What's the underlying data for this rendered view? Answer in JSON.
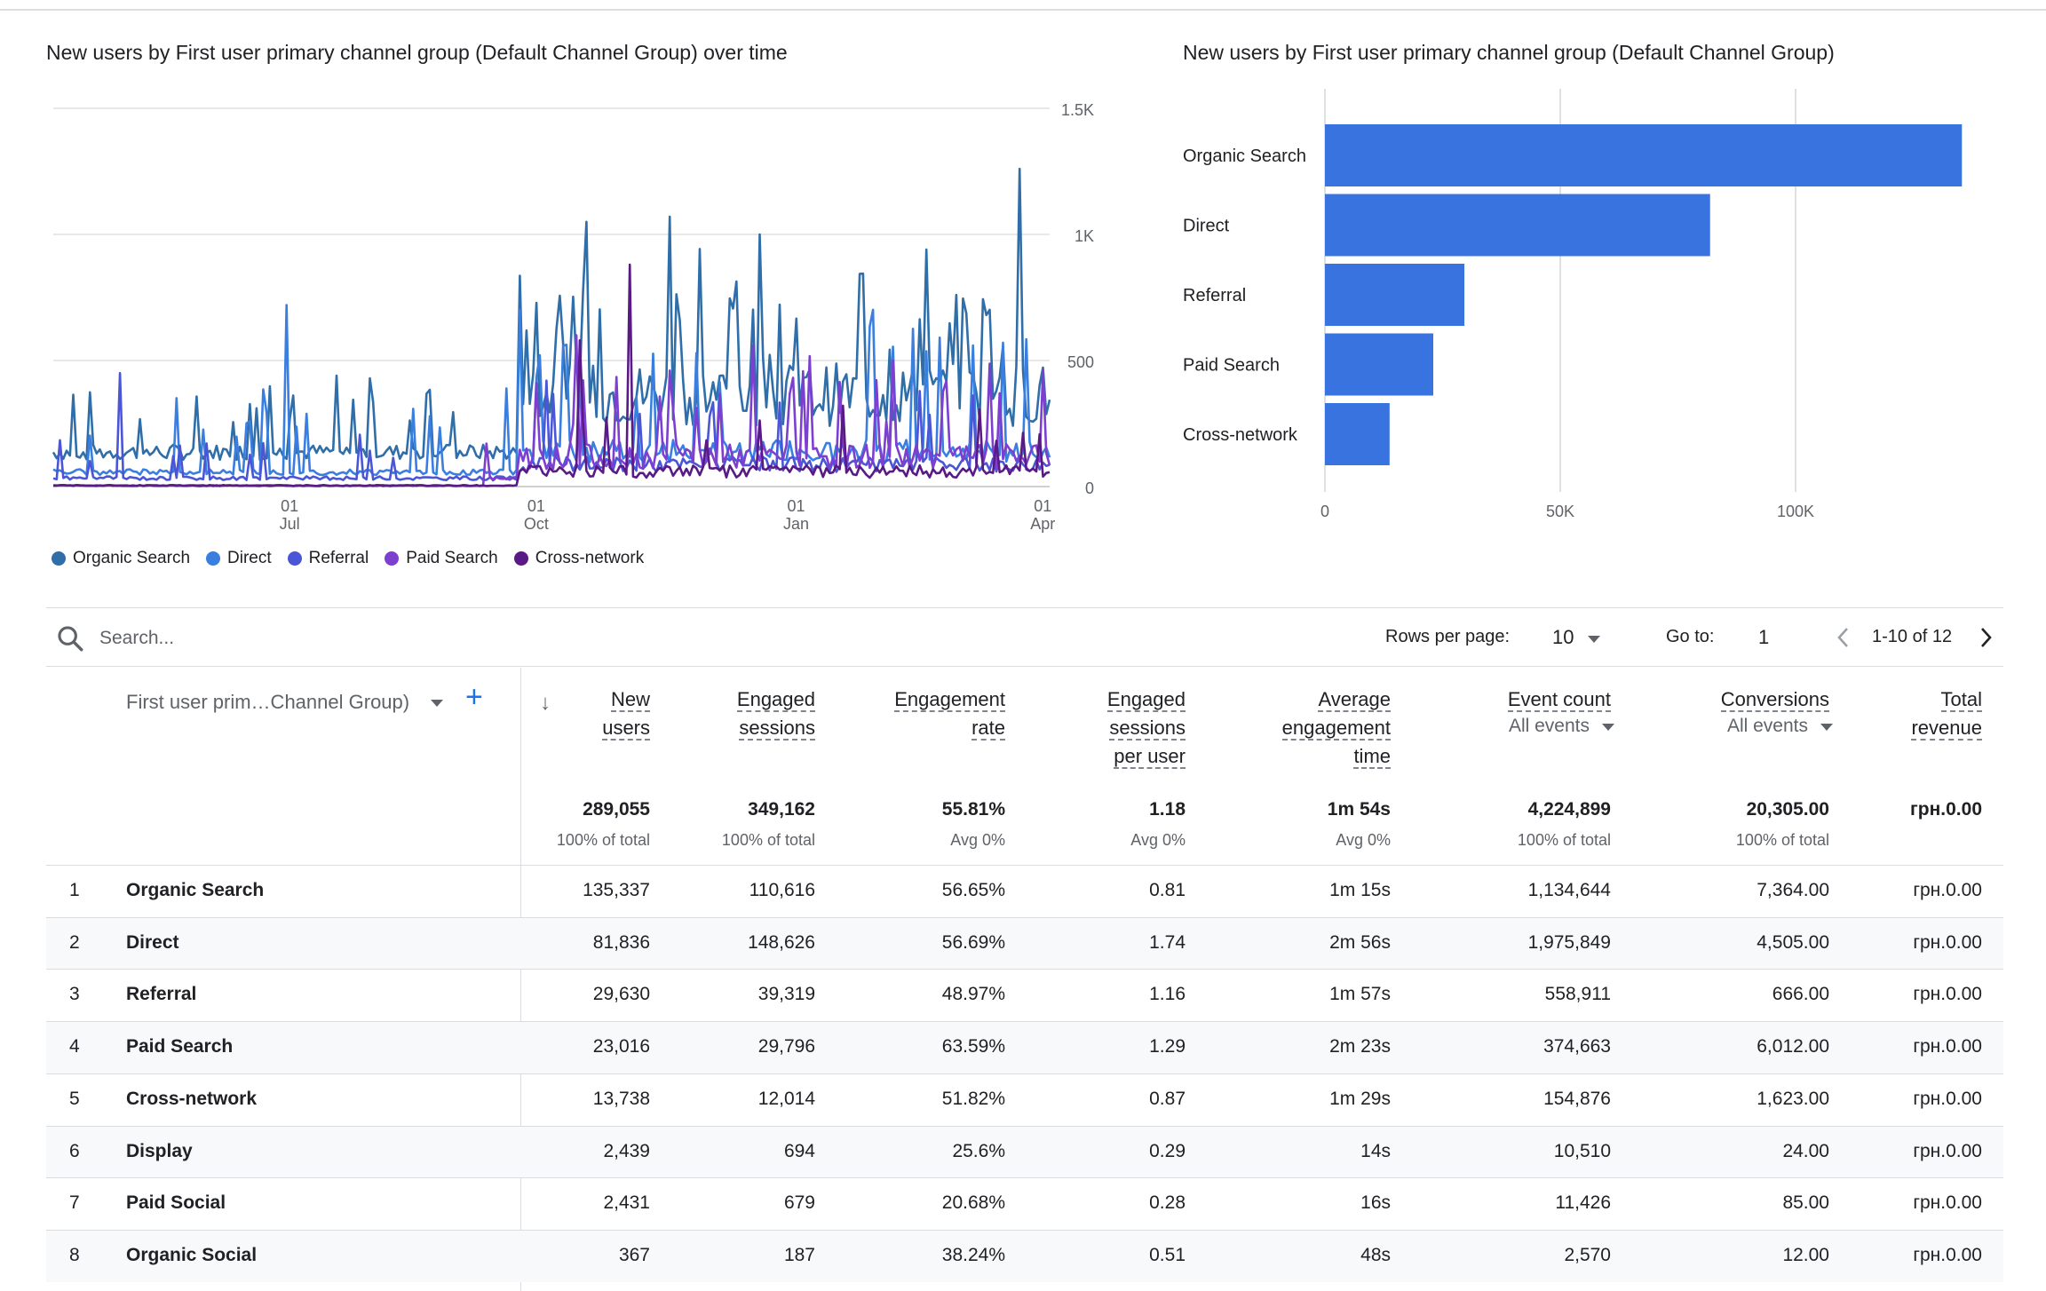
{
  "line_chart": {
    "title": "New users by First user primary channel group (Default Channel Group) over time",
    "y_ticks": [
      "1.5K",
      "1K",
      "500",
      "0"
    ],
    "x_ticks": [
      {
        "day": "01",
        "month": "Jul"
      },
      {
        "day": "01",
        "month": "Oct"
      },
      {
        "day": "01",
        "month": "Jan"
      },
      {
        "day": "01",
        "month": "Apr"
      }
    ],
    "legend": [
      {
        "label": "Organic Search",
        "color": "#2f6ea8"
      },
      {
        "label": "Direct",
        "color": "#3a7ee0"
      },
      {
        "label": "Referral",
        "color": "#4a56d6"
      },
      {
        "label": "Paid Search",
        "color": "#7c3fd0"
      },
      {
        "label": "Cross-network",
        "color": "#5a1a86"
      }
    ]
  },
  "bar_chart": {
    "title": "New users by First user primary channel group (Default Channel Group)",
    "x_ticks": [
      "0",
      "50K",
      "100K"
    ]
  },
  "chart_data": [
    {
      "type": "line",
      "title": "New users by First user primary channel group (Default Channel Group) over time",
      "x_range": [
        "Jun",
        "Apr"
      ],
      "ylim": [
        0,
        1500
      ],
      "series": [
        {
          "name": "Organic Search",
          "peaks": [
            1260,
            1070,
            1050,
            1000,
            950
          ]
        },
        {
          "name": "Direct",
          "peaks": [
            720,
            700,
            560,
            500,
            450
          ]
        },
        {
          "name": "Referral",
          "peaks": [
            450,
            420,
            380,
            350,
            300
          ]
        },
        {
          "name": "Paid Search",
          "peaks": [
            600,
            560,
            500,
            420,
            380
          ]
        },
        {
          "name": "Cross-network",
          "peaks": [
            880,
            580,
            420,
            300,
            200
          ]
        }
      ]
    },
    {
      "type": "bar",
      "title": "New users by First user primary channel group (Default Channel Group)",
      "categories": [
        "Organic Search",
        "Direct",
        "Referral",
        "Paid Search",
        "Cross-network"
      ],
      "values": [
        135337,
        81836,
        29630,
        23016,
        13738
      ],
      "xlim": [
        0,
        150000
      ],
      "color": "#3873e0"
    }
  ],
  "toolbar": {
    "search_placeholder": "Search...",
    "rows_per_page_label": "Rows per page:",
    "rows_per_page_value": "10",
    "goto_label": "Go to:",
    "goto_value": "1",
    "range": "1-10 of 12"
  },
  "table": {
    "dimension_header": "First user prim…Channel Group)",
    "columns": [
      {
        "lines": [
          "New",
          "users"
        ],
        "sub": "",
        "total": "289,055",
        "total_sub": "100% of total"
      },
      {
        "lines": [
          "Engaged",
          "sessions"
        ],
        "sub": "",
        "total": "349,162",
        "total_sub": "100% of total"
      },
      {
        "lines": [
          "Engagement",
          "rate"
        ],
        "sub": "",
        "total": "55.81%",
        "total_sub": "Avg 0%"
      },
      {
        "lines": [
          "Engaged",
          "sessions",
          "per user"
        ],
        "sub": "",
        "total": "1.18",
        "total_sub": "Avg 0%"
      },
      {
        "lines": [
          "Average",
          "engagement",
          "time"
        ],
        "sub": "",
        "total": "1m 54s",
        "total_sub": "Avg 0%"
      },
      {
        "lines": [
          "Event count"
        ],
        "sub": "All events",
        "total": "4,224,899",
        "total_sub": "100% of total"
      },
      {
        "lines": [
          "Conversions"
        ],
        "sub": "All events",
        "total": "20,305.00",
        "total_sub": "100% of total"
      },
      {
        "lines": [
          "Total",
          "revenue"
        ],
        "sub": "",
        "total": "грн.0.00",
        "total_sub": ""
      }
    ],
    "rows": [
      {
        "idx": "1",
        "name": "Organic Search",
        "values": [
          "135,337",
          "110,616",
          "56.65%",
          "0.81",
          "1m 15s",
          "1,134,644",
          "7,364.00",
          "грн.0.00"
        ]
      },
      {
        "idx": "2",
        "name": "Direct",
        "values": [
          "81,836",
          "148,626",
          "56.69%",
          "1.74",
          "2m 56s",
          "1,975,849",
          "4,505.00",
          "грн.0.00"
        ]
      },
      {
        "idx": "3",
        "name": "Referral",
        "values": [
          "29,630",
          "39,319",
          "48.97%",
          "1.16",
          "1m 57s",
          "558,911",
          "666.00",
          "грн.0.00"
        ]
      },
      {
        "idx": "4",
        "name": "Paid Search",
        "values": [
          "23,016",
          "29,796",
          "63.59%",
          "1.29",
          "2m 23s",
          "374,663",
          "6,012.00",
          "грн.0.00"
        ]
      },
      {
        "idx": "5",
        "name": "Cross-network",
        "values": [
          "13,738",
          "12,014",
          "51.82%",
          "0.87",
          "1m 29s",
          "154,876",
          "1,623.00",
          "грн.0.00"
        ]
      },
      {
        "idx": "6",
        "name": "Display",
        "values": [
          "2,439",
          "694",
          "25.6%",
          "0.29",
          "14s",
          "10,510",
          "24.00",
          "грн.0.00"
        ]
      },
      {
        "idx": "7",
        "name": "Paid Social",
        "values": [
          "2,431",
          "679",
          "20.68%",
          "0.28",
          "16s",
          "11,426",
          "85.00",
          "грн.0.00"
        ]
      },
      {
        "idx": "8",
        "name": "Organic Social",
        "values": [
          "367",
          "187",
          "38.24%",
          "0.51",
          "48s",
          "2,570",
          "12.00",
          "грн.0.00"
        ]
      }
    ]
  }
}
